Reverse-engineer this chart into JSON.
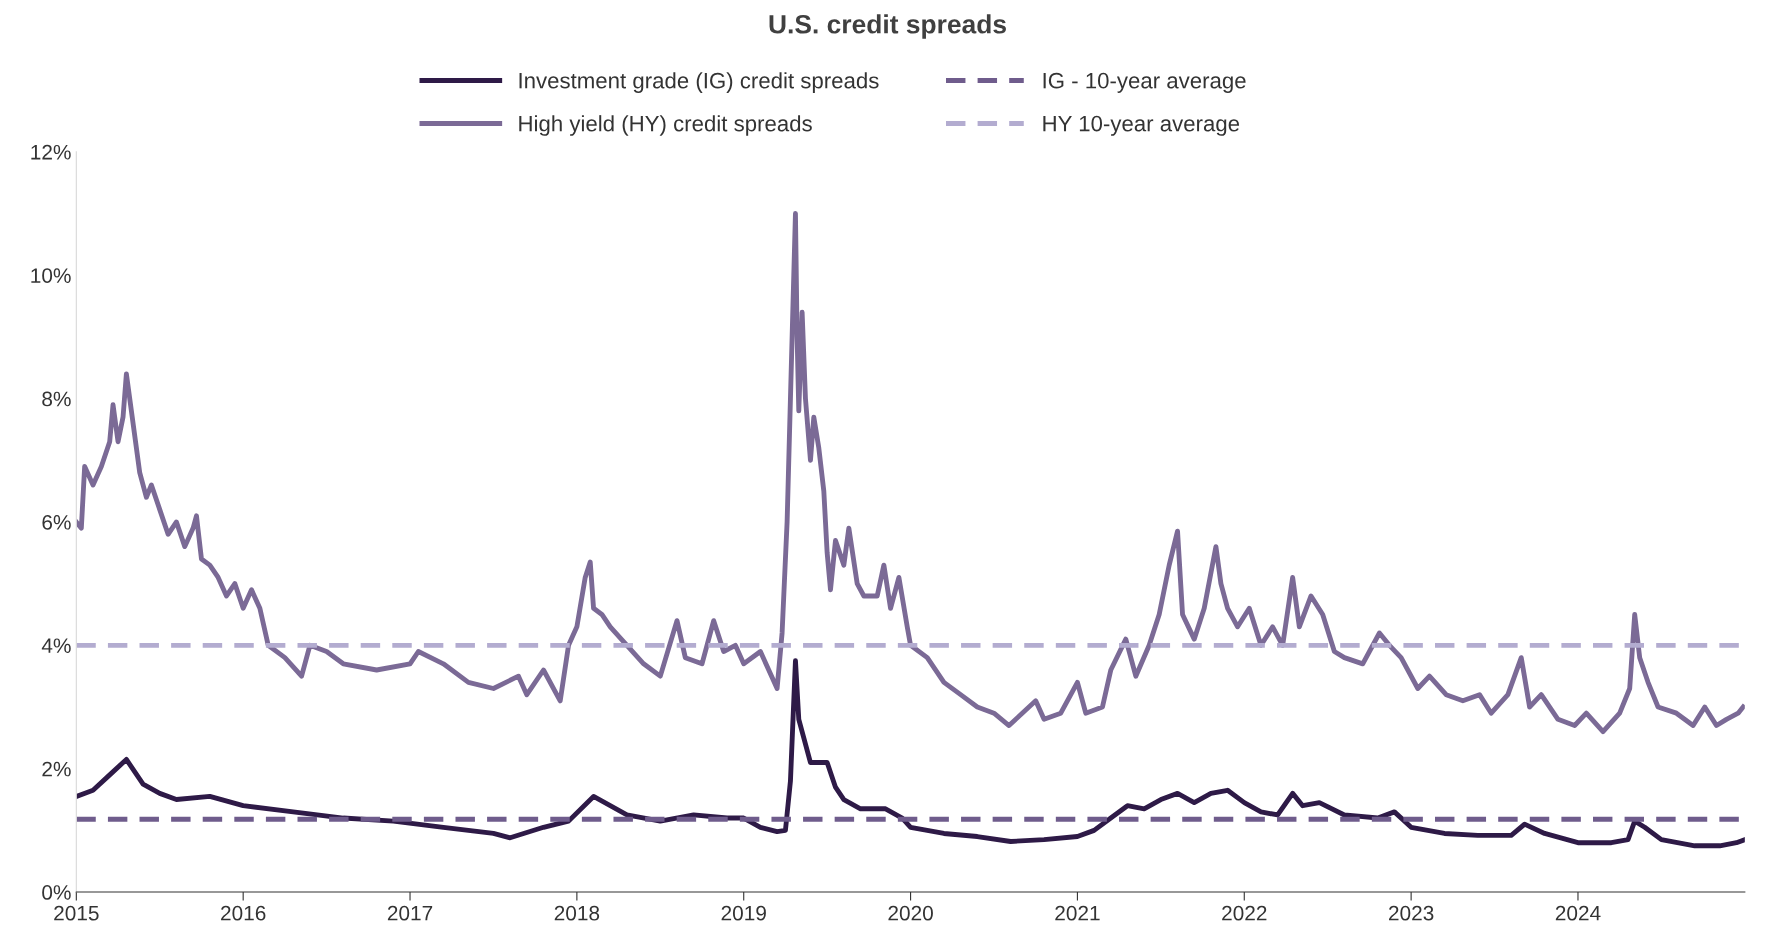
{
  "chart_data": {
    "type": "line",
    "title": "U.S. credit spreads",
    "xlim": [
      2015,
      2025
    ],
    "xticks": [
      2015,
      2016,
      2017,
      2018,
      2019,
      2020,
      2021,
      2022,
      2023,
      2024
    ],
    "ylim": [
      0,
      12
    ],
    "yticks": [
      {
        "value": 0,
        "label": "0%"
      },
      {
        "value": 2,
        "label": "2%"
      },
      {
        "value": 4,
        "label": "4%"
      },
      {
        "value": 6,
        "label": "6%"
      },
      {
        "value": 8,
        "label": "8%"
      },
      {
        "value": 10,
        "label": "10%"
      },
      {
        "value": 12,
        "label": "12%"
      }
    ],
    "grid": false,
    "legend": "top",
    "series": [
      {
        "name": "Investment grade (IG) credit spreads",
        "color": "#2e1a47",
        "line_style": "solid",
        "x": [
          2015.0,
          2015.1,
          2015.2,
          2015.3,
          2015.4,
          2015.5,
          2015.6,
          2015.8,
          2016.0,
          2016.3,
          2016.6,
          2016.9,
          2017.2,
          2017.5,
          2017.6,
          2017.8,
          2017.95,
          2018.1,
          2018.3,
          2018.5,
          2018.7,
          2018.9,
          2019.0,
          2019.1,
          2019.2,
          2019.25,
          2019.28,
          2019.31,
          2019.33,
          2019.36,
          2019.4,
          2019.5,
          2019.55,
          2019.6,
          2019.7,
          2019.85,
          2019.95,
          2020.0,
          2020.2,
          2020.4,
          2020.6,
          2020.8,
          2021.0,
          2021.1,
          2021.2,
          2021.3,
          2021.4,
          2021.5,
          2021.6,
          2021.7,
          2021.8,
          2021.9,
          2022.0,
          2022.1,
          2022.2,
          2022.29,
          2022.35,
          2022.45,
          2022.6,
          2022.8,
          2022.9,
          2023.0,
          2023.2,
          2023.4,
          2023.6,
          2023.68,
          2023.8,
          2024.0,
          2024.2,
          2024.3,
          2024.34,
          2024.4,
          2024.5,
          2024.7,
          2024.85,
          2024.95,
          2025.0
        ],
        "values": [
          1.55,
          1.65,
          1.9,
          2.15,
          1.75,
          1.6,
          1.5,
          1.55,
          1.4,
          1.3,
          1.2,
          1.15,
          1.05,
          0.95,
          0.88,
          1.05,
          1.15,
          1.55,
          1.25,
          1.15,
          1.25,
          1.2,
          1.2,
          1.05,
          0.98,
          1.0,
          1.8,
          3.75,
          2.8,
          2.5,
          2.1,
          2.1,
          1.7,
          1.5,
          1.35,
          1.35,
          1.2,
          1.05,
          0.95,
          0.9,
          0.82,
          0.85,
          0.9,
          1.0,
          1.2,
          1.4,
          1.35,
          1.5,
          1.6,
          1.45,
          1.6,
          1.65,
          1.45,
          1.3,
          1.25,
          1.6,
          1.4,
          1.45,
          1.25,
          1.2,
          1.3,
          1.05,
          0.95,
          0.92,
          0.92,
          1.1,
          0.95,
          0.8,
          0.8,
          0.85,
          1.15,
          1.05,
          0.85,
          0.75,
          0.75,
          0.8,
          0.85
        ]
      },
      {
        "name": "High yield (HY) credit spreads",
        "color": "#7b6a96",
        "line_style": "solid",
        "x": [
          2015.0,
          2015.03,
          2015.05,
          2015.1,
          2015.15,
          2015.2,
          2015.22,
          2015.25,
          2015.28,
          2015.3,
          2015.33,
          2015.38,
          2015.42,
          2015.45,
          2015.5,
          2015.55,
          2015.6,
          2015.65,
          2015.7,
          2015.72,
          2015.75,
          2015.8,
          2015.85,
          2015.9,
          2015.95,
          2016.0,
          2016.05,
          2016.1,
          2016.15,
          2016.25,
          2016.35,
          2016.4,
          2016.5,
          2016.6,
          2016.8,
          2017.0,
          2017.05,
          2017.2,
          2017.35,
          2017.5,
          2017.65,
          2017.7,
          2017.8,
          2017.9,
          2017.95,
          2018.0,
          2018.05,
          2018.08,
          2018.1,
          2018.15,
          2018.2,
          2018.3,
          2018.4,
          2018.5,
          2018.6,
          2018.65,
          2018.75,
          2018.82,
          2018.88,
          2018.95,
          2019.0,
          2019.1,
          2019.15,
          2019.2,
          2019.23,
          2019.26,
          2019.28,
          2019.3,
          2019.31,
          2019.32,
          2019.33,
          2019.35,
          2019.37,
          2019.4,
          2019.42,
          2019.45,
          2019.48,
          2019.5,
          2019.52,
          2019.55,
          2019.6,
          2019.63,
          2019.68,
          2019.72,
          2019.8,
          2019.84,
          2019.88,
          2019.93,
          2019.98,
          2020.0,
          2020.1,
          2020.2,
          2020.3,
          2020.4,
          2020.5,
          2020.59,
          2020.75,
          2020.8,
          2020.9,
          2021.0,
          2021.05,
          2021.15,
          2021.2,
          2021.29,
          2021.35,
          2021.43,
          2021.49,
          2021.55,
          2021.6,
          2021.63,
          2021.7,
          2021.76,
          2021.83,
          2021.86,
          2021.9,
          2021.96,
          2022.03,
          2022.1,
          2022.17,
          2022.23,
          2022.29,
          2022.33,
          2022.4,
          2022.47,
          2022.54,
          2022.6,
          2022.71,
          2022.81,
          2022.87,
          2022.94,
          2023.04,
          2023.11,
          2023.21,
          2023.31,
          2023.41,
          2023.48,
          2023.58,
          2023.66,
          2023.71,
          2023.78,
          2023.88,
          2023.98,
          2024.05,
          2024.15,
          2024.25,
          2024.31,
          2024.34,
          2024.37,
          2024.42,
          2024.48,
          2024.59,
          2024.69,
          2024.76,
          2024.83,
          2024.89,
          2024.96,
          2024.99
        ],
        "values": [
          6.0,
          5.9,
          6.9,
          6.6,
          6.9,
          7.3,
          7.9,
          7.3,
          7.7,
          8.4,
          7.8,
          6.8,
          6.4,
          6.6,
          6.2,
          5.8,
          6.0,
          5.6,
          5.9,
          6.1,
          5.4,
          5.3,
          5.1,
          4.8,
          5.0,
          4.6,
          4.9,
          4.6,
          4.0,
          3.8,
          3.5,
          4.0,
          3.9,
          3.7,
          3.6,
          3.7,
          3.9,
          3.7,
          3.4,
          3.3,
          3.5,
          3.2,
          3.6,
          3.1,
          4.0,
          4.3,
          5.1,
          5.35,
          4.6,
          4.5,
          4.3,
          4.0,
          3.7,
          3.5,
          4.4,
          3.8,
          3.7,
          4.4,
          3.9,
          4.0,
          3.7,
          3.9,
          3.6,
          3.3,
          4.2,
          6.0,
          8.0,
          10.0,
          11.0,
          9.0,
          7.8,
          9.4,
          8.0,
          7.0,
          7.7,
          7.2,
          6.5,
          5.5,
          4.9,
          5.7,
          5.3,
          5.9,
          5.0,
          4.8,
          4.8,
          5.3,
          4.6,
          5.1,
          4.3,
          4.0,
          3.8,
          3.4,
          3.2,
          3.0,
          2.9,
          2.7,
          3.1,
          2.8,
          2.9,
          3.4,
          2.9,
          3.0,
          3.6,
          4.1,
          3.5,
          4.0,
          4.5,
          5.3,
          5.85,
          4.5,
          4.1,
          4.6,
          5.6,
          5.0,
          4.6,
          4.3,
          4.6,
          4.0,
          4.3,
          4.0,
          5.1,
          4.3,
          4.8,
          4.5,
          3.9,
          3.8,
          3.7,
          4.2,
          4.0,
          3.8,
          3.3,
          3.5,
          3.2,
          3.1,
          3.2,
          2.9,
          3.2,
          3.8,
          3.0,
          3.2,
          2.8,
          2.7,
          2.9,
          2.6,
          2.9,
          3.3,
          4.5,
          3.8,
          3.4,
          3.0,
          2.9,
          2.7,
          3.0,
          2.7,
          2.8,
          2.9,
          3.0
        ]
      },
      {
        "name": "IG - 10-year average",
        "color": "#6f5c8c",
        "line_style": "dashed",
        "x": [
          2015,
          2025
        ],
        "values": [
          1.18,
          1.18
        ]
      },
      {
        "name": "HY 10-year average",
        "color": "#b3acd0",
        "line_style": "dashed",
        "x": [
          2015,
          2025
        ],
        "values": [
          4.0,
          4.0
        ]
      }
    ]
  }
}
